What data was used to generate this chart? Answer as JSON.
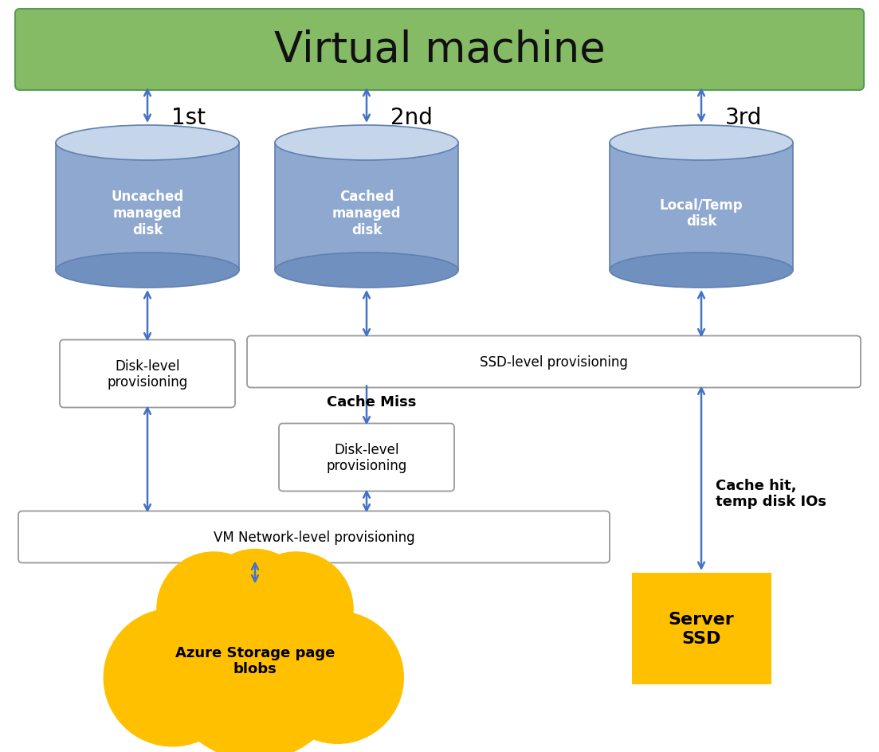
{
  "title": "Virtual machine",
  "title_bg": "#85bb65",
  "title_fg": "#111111",
  "arrow_color": "#4472c4",
  "disk_body_color": "#8fa8d0",
  "disk_top_color": "#c5d5ea",
  "disk_edge_color": "#6080b0",
  "disk_bottom_color": "#7090c0",
  "box_bg": "#ffffff",
  "box_edge": "#999999",
  "ssd_box_color": "#ffc000",
  "ssd_text": "Server\nSSD",
  "cloud_color": "#ffc000",
  "cloud_text": "Azure Storage page\nblobs",
  "label_1st": "1st",
  "label_2nd": "2nd",
  "label_3rd": "3rd",
  "disk1_text": "Uncached\nmanaged\ndisk",
  "disk2_text": "Cached\nmanaged\ndisk",
  "disk3_text": "Local/Temp\ndisk",
  "box_disk1_text": "Disk-level\nprovisioning",
  "box_ssd_text": "SSD-level provisioning",
  "cache_miss_text": "Cache Miss",
  "box_disk2_text": "Disk-level\nprovisioning",
  "box_vm_text": "VM Network-level provisioning",
  "cache_hit_text": "Cache hit,\ntemp disk IOs",
  "figsize": [
    11.03,
    9.45
  ],
  "dpi": 100
}
